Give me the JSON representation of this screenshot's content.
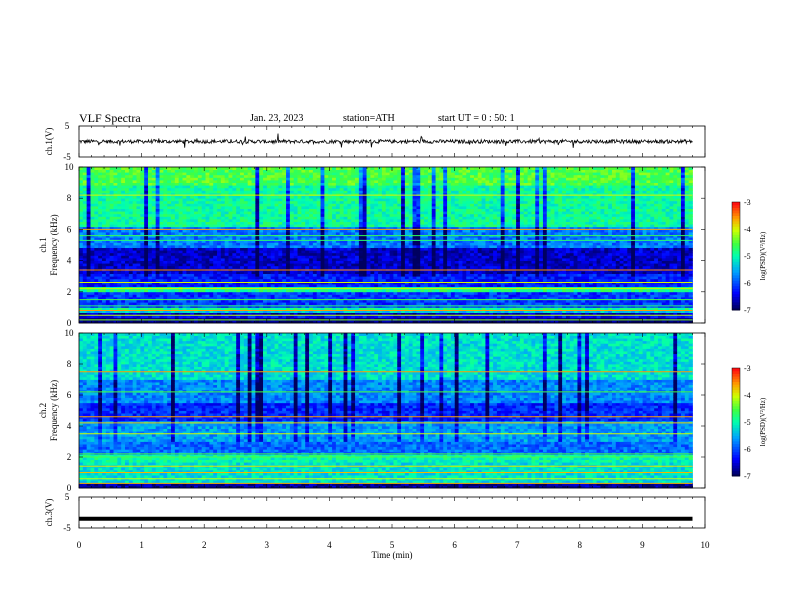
{
  "header": {
    "title": "VLF Spectra",
    "date": "Jan. 23, 2023",
    "station": "station=ATH",
    "start_ut": "start UT = 0 : 50: 1"
  },
  "chart_data": [
    {
      "type": "line",
      "panel": "ch1-waveform",
      "ylabel": "ch.1(V)",
      "xlim": [
        0,
        10
      ],
      "ylim": [
        -5,
        5
      ],
      "y_ticks": [
        "5",
        "-5"
      ],
      "series": [
        {
          "x": [
            0,
            9.8
          ],
          "y": [
            0,
            0
          ],
          "note_range": [
            -1,
            1
          ]
        }
      ]
    },
    {
      "type": "heatmap",
      "panel": "ch1-spectrogram",
      "ylabel": "ch.1\nFrequency (kHz)",
      "ylabel_line1": "ch.1",
      "ylabel_line2": "Frequency (kHz)",
      "xlim": [
        0,
        10
      ],
      "ylim": [
        0,
        10
      ],
      "y_ticks": [
        "0",
        "2",
        "4",
        "6",
        "8",
        "10"
      ],
      "colorbar": {
        "label": "log(PSD)(V²/Hz)",
        "range": [
          -7,
          -3
        ],
        "ticks": [
          "-3",
          "-4",
          "-5",
          "-6",
          "-7"
        ]
      }
    },
    {
      "type": "heatmap",
      "panel": "ch2-spectrogram",
      "ylabel_line1": "ch.2",
      "ylabel_line2": "Frequency (kHz)",
      "xlim": [
        0,
        10
      ],
      "ylim": [
        0,
        10
      ],
      "y_ticks": [
        "0",
        "2",
        "4",
        "6",
        "8",
        "10"
      ],
      "colorbar": {
        "label": "log(PSD)(V²/Hz)",
        "range": [
          -7,
          -3
        ],
        "ticks": [
          "-3",
          "-4",
          "-5",
          "-6",
          "-7"
        ]
      }
    },
    {
      "type": "line",
      "panel": "ch3-waveform",
      "ylabel": "ch.3(V)",
      "xlabel": "Time (min)",
      "xlim": [
        0,
        10
      ],
      "ylim": [
        -5,
        5
      ],
      "y_ticks": [
        "5",
        "-5"
      ],
      "x_ticks": [
        "0",
        "1",
        "2",
        "3",
        "4",
        "5",
        "6",
        "7",
        "8",
        "9",
        "10"
      ],
      "series": [
        {
          "x": [
            0,
            9.8
          ],
          "y": [
            -2,
            -2
          ]
        }
      ]
    }
  ]
}
